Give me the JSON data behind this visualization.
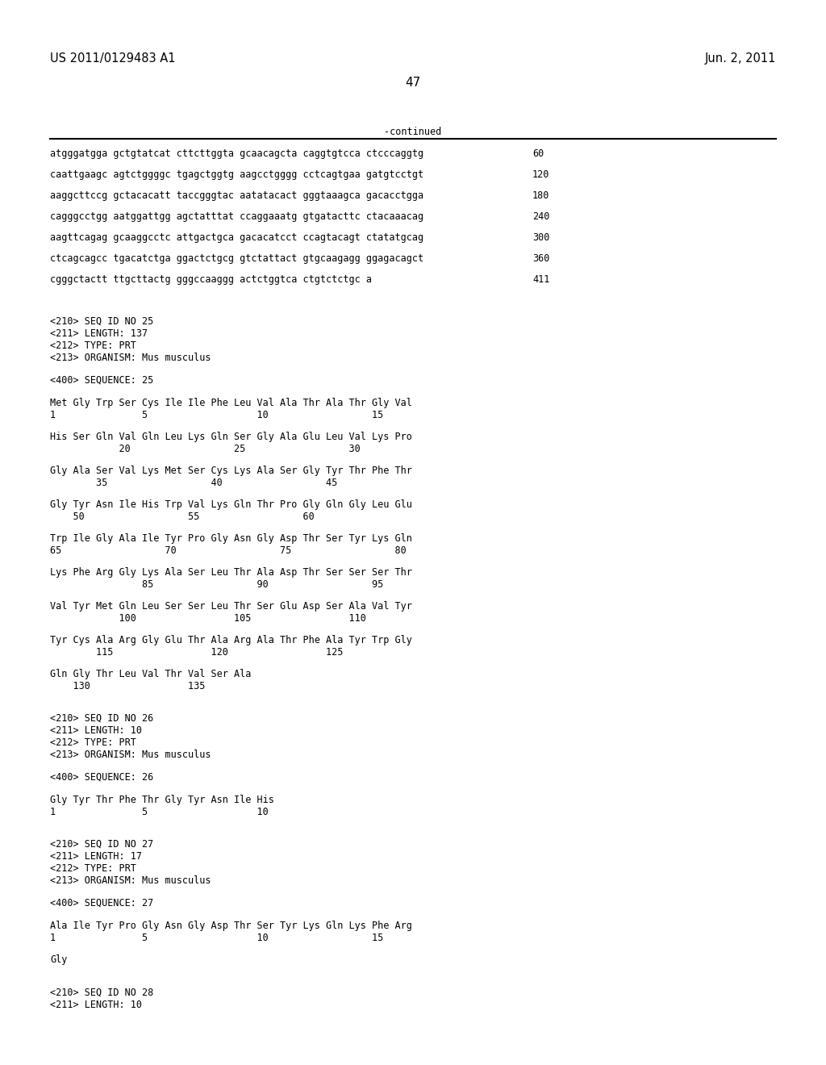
{
  "page_header_left": "US 2011/0129483 A1",
  "page_header_right": "Jun. 2, 2011",
  "page_number": "47",
  "continued_label": "-continued",
  "background_color": "#ffffff",
  "text_color": "#000000",
  "font_size_header": 10.5,
  "font_size_body": 8.5,
  "font_size_page_num": 11,
  "lines": [
    {
      "text": "atgggatgga gctgtatcat cttcttggta gcaacagcta caggtgtcca ctcccaggtg",
      "num": "60",
      "type": "seq"
    },
    {
      "text": "caattgaagc agtctggggc tgagctggtg aagcctgggg cctcagtgaa gatgtcctgt",
      "num": "120",
      "type": "seq"
    },
    {
      "text": "aaggcttccg gctacacatt taccgggtac aatatacact gggtaaagca gacacctgga",
      "num": "180",
      "type": "seq"
    },
    {
      "text": "cagggcctgg aatggattgg agctatttat ccaggaaatg gtgatacttc ctacaaacag",
      "num": "240",
      "type": "seq"
    },
    {
      "text": "aagttcagag gcaaggcctc attgactgca gacacatcct ccagtacagt ctatatgcag",
      "num": "300",
      "type": "seq"
    },
    {
      "text": "ctcagcagcc tgacatctga ggactctgcg gtctattact gtgcaagagg ggagacagct",
      "num": "360",
      "type": "seq"
    },
    {
      "text": "cgggctactt ttgcttactg gggccaaggg actctggtca ctgtctctgc a",
      "num": "411",
      "type": "seq"
    },
    {
      "text": "",
      "type": "blank"
    },
    {
      "text": "",
      "type": "blank"
    },
    {
      "text": "<210> SEQ ID NO 25",
      "type": "meta"
    },
    {
      "text": "<211> LENGTH: 137",
      "type": "meta"
    },
    {
      "text": "<212> TYPE: PRT",
      "type": "meta"
    },
    {
      "text": "<213> ORGANISM: Mus musculus",
      "type": "meta"
    },
    {
      "text": "",
      "type": "blank"
    },
    {
      "text": "<400> SEQUENCE: 25",
      "type": "meta"
    },
    {
      "text": "",
      "type": "blank"
    },
    {
      "text": "Met Gly Trp Ser Cys Ile Ile Phe Leu Val Ala Thr Ala Thr Gly Val",
      "type": "aa"
    },
    {
      "text": "1               5                   10                  15",
      "type": "pos"
    },
    {
      "text": "",
      "type": "blank"
    },
    {
      "text": "His Ser Gln Val Gln Leu Lys Gln Ser Gly Ala Glu Leu Val Lys Pro",
      "type": "aa"
    },
    {
      "text": "            20                  25                  30",
      "type": "pos"
    },
    {
      "text": "",
      "type": "blank"
    },
    {
      "text": "Gly Ala Ser Val Lys Met Ser Cys Lys Ala Ser Gly Tyr Thr Phe Thr",
      "type": "aa"
    },
    {
      "text": "        35                  40                  45",
      "type": "pos"
    },
    {
      "text": "",
      "type": "blank"
    },
    {
      "text": "Gly Tyr Asn Ile His Trp Val Lys Gln Thr Pro Gly Gln Gly Leu Glu",
      "type": "aa"
    },
    {
      "text": "    50                  55                  60",
      "type": "pos"
    },
    {
      "text": "",
      "type": "blank"
    },
    {
      "text": "Trp Ile Gly Ala Ile Tyr Pro Gly Asn Gly Asp Thr Ser Tyr Lys Gln",
      "type": "aa"
    },
    {
      "text": "65                  70                  75                  80",
      "type": "pos"
    },
    {
      "text": "",
      "type": "blank"
    },
    {
      "text": "Lys Phe Arg Gly Lys Ala Ser Leu Thr Ala Asp Thr Ser Ser Ser Thr",
      "type": "aa"
    },
    {
      "text": "                85                  90                  95",
      "type": "pos"
    },
    {
      "text": "",
      "type": "blank"
    },
    {
      "text": "Val Tyr Met Gln Leu Ser Ser Leu Thr Ser Glu Asp Ser Ala Val Tyr",
      "type": "aa"
    },
    {
      "text": "            100                 105                 110",
      "type": "pos"
    },
    {
      "text": "",
      "type": "blank"
    },
    {
      "text": "Tyr Cys Ala Arg Gly Glu Thr Ala Arg Ala Thr Phe Ala Tyr Trp Gly",
      "type": "aa"
    },
    {
      "text": "        115                 120                 125",
      "type": "pos"
    },
    {
      "text": "",
      "type": "blank"
    },
    {
      "text": "Gln Gly Thr Leu Val Thr Val Ser Ala",
      "type": "aa"
    },
    {
      "text": "    130                 135",
      "type": "pos"
    },
    {
      "text": "",
      "type": "blank"
    },
    {
      "text": "",
      "type": "blank"
    },
    {
      "text": "<210> SEQ ID NO 26",
      "type": "meta"
    },
    {
      "text": "<211> LENGTH: 10",
      "type": "meta"
    },
    {
      "text": "<212> TYPE: PRT",
      "type": "meta"
    },
    {
      "text": "<213> ORGANISM: Mus musculus",
      "type": "meta"
    },
    {
      "text": "",
      "type": "blank"
    },
    {
      "text": "<400> SEQUENCE: 26",
      "type": "meta"
    },
    {
      "text": "",
      "type": "blank"
    },
    {
      "text": "Gly Tyr Thr Phe Thr Gly Tyr Asn Ile His",
      "type": "aa"
    },
    {
      "text": "1               5                   10",
      "type": "pos"
    },
    {
      "text": "",
      "type": "blank"
    },
    {
      "text": "",
      "type": "blank"
    },
    {
      "text": "<210> SEQ ID NO 27",
      "type": "meta"
    },
    {
      "text": "<211> LENGTH: 17",
      "type": "meta"
    },
    {
      "text": "<212> TYPE: PRT",
      "type": "meta"
    },
    {
      "text": "<213> ORGANISM: Mus musculus",
      "type": "meta"
    },
    {
      "text": "",
      "type": "blank"
    },
    {
      "text": "<400> SEQUENCE: 27",
      "type": "meta"
    },
    {
      "text": "",
      "type": "blank"
    },
    {
      "text": "Ala Ile Tyr Pro Gly Asn Gly Asp Thr Ser Tyr Lys Gln Lys Phe Arg",
      "type": "aa"
    },
    {
      "text": "1               5                   10                  15",
      "type": "pos"
    },
    {
      "text": "",
      "type": "blank"
    },
    {
      "text": "Gly",
      "type": "aa"
    },
    {
      "text": "",
      "type": "blank"
    },
    {
      "text": "",
      "type": "blank"
    },
    {
      "text": "<210> SEQ ID NO 28",
      "type": "meta"
    },
    {
      "text": "<211> LENGTH: 10",
      "type": "meta"
    }
  ]
}
